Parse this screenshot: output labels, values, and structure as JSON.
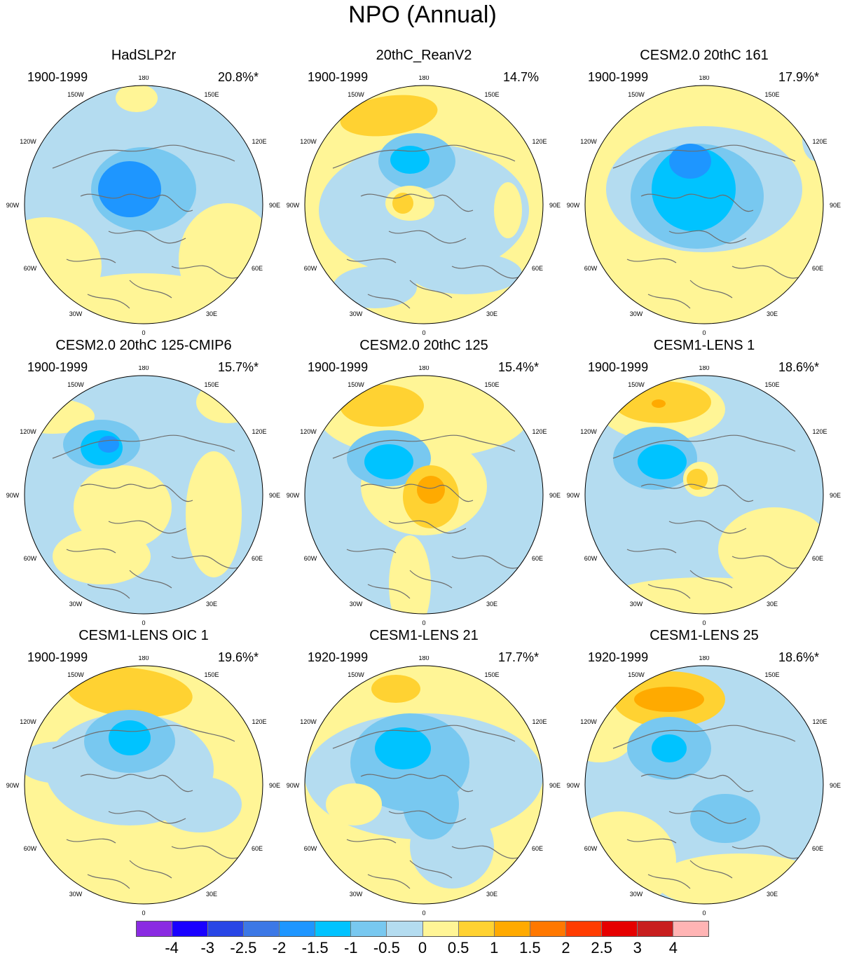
{
  "title": "NPO (Annual)",
  "panels": [
    {
      "title": "HadSLP2r",
      "period": "1900-1999",
      "variance": "20.8%*",
      "pattern": "A"
    },
    {
      "title": "20thC_ReanV2",
      "period": "1900-1999",
      "variance": "14.7%",
      "pattern": "B"
    },
    {
      "title": "CESM2.0 20thC 161",
      "period": "1900-1999",
      "variance": "17.9%*",
      "pattern": "C"
    },
    {
      "title": "CESM2.0 20thC 125-CMIP6",
      "period": "1900-1999",
      "variance": "15.7%*",
      "pattern": "D"
    },
    {
      "title": "CESM2.0 20thC 125",
      "period": "1900-1999",
      "variance": "15.4%*",
      "pattern": "E"
    },
    {
      "title": "CESM1-LENS 1",
      "period": "1900-1999",
      "variance": "18.6%*",
      "pattern": "F"
    },
    {
      "title": "CESM1-LENS OIC 1",
      "period": "1900-1999",
      "variance": "19.6%*",
      "pattern": "G"
    },
    {
      "title": "CESM1-LENS 21",
      "period": "1920-1999",
      "variance": "17.7%*",
      "pattern": "H"
    },
    {
      "title": "CESM1-LENS 25",
      "period": "1920-1999",
      "variance": "18.6%*",
      "pattern": "I"
    }
  ],
  "longitude_labels": {
    "lon_180": "180",
    "lon_150e": "150E",
    "lon_120e": "120E",
    "lon_90e": "90E",
    "lon_60e": "60E",
    "lon_30e": "30E",
    "lon_0": "0",
    "lon_30w": "30W",
    "lon_60w": "60W",
    "lon_90w": "90W",
    "lon_120w": "120W",
    "lon_150w": "150W"
  },
  "colorbar": {
    "labels": [
      "-4",
      "-3",
      "-2.5",
      "-2",
      "-1.5",
      "-1",
      "-0.5",
      "0",
      "0.5",
      "1",
      "1.5",
      "2",
      "2.5",
      "3",
      "4"
    ],
    "colors": [
      "#8a2be2",
      "#1a00ff",
      "#2846e6",
      "#3c78e6",
      "#1e96ff",
      "#00c3ff",
      "#78c8f0",
      "#b4dcf0",
      "#fff596",
      "#ffd232",
      "#ffaa00",
      "#ff7800",
      "#ff3c00",
      "#e60000",
      "#c81e1e",
      "#ffb4b4"
    ]
  }
}
